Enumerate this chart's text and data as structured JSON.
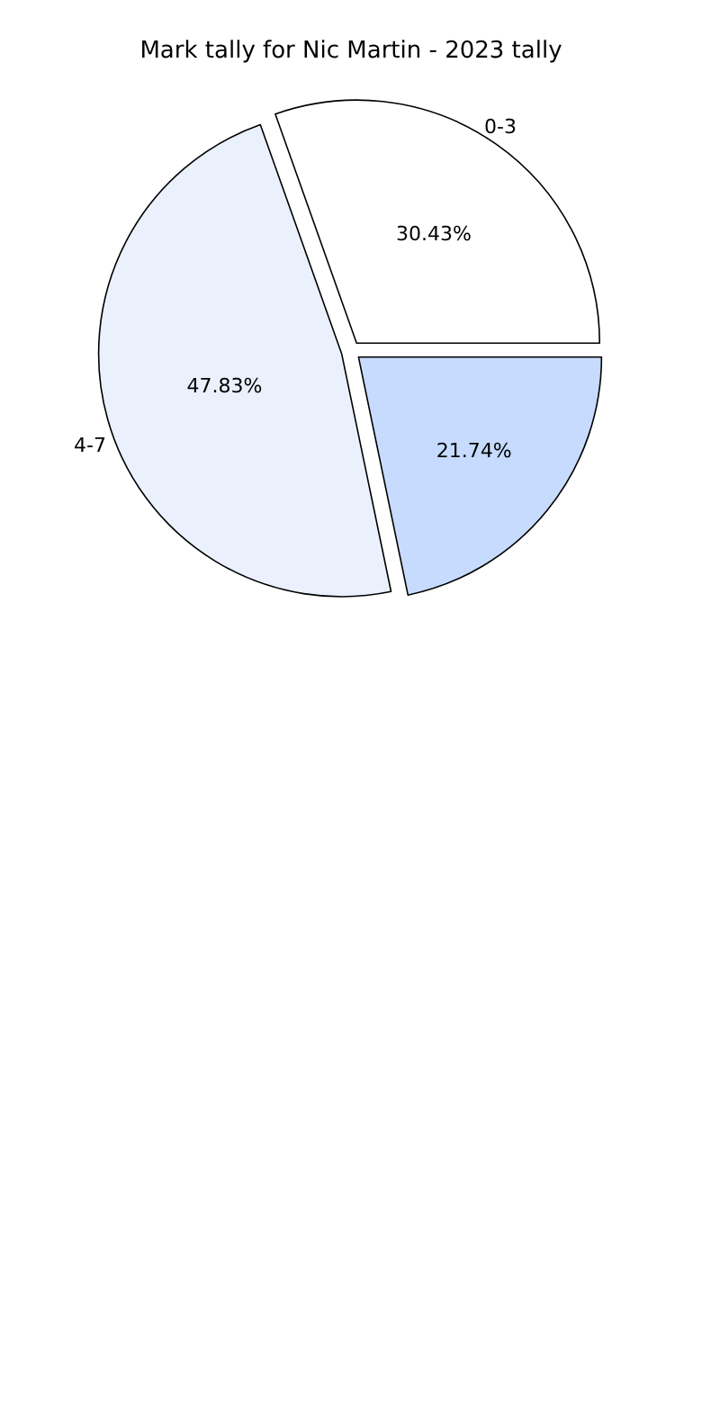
{
  "chart_data": {
    "type": "pie",
    "title": "Mark tally for Nic Martin - 2023 tally",
    "categories": [
      "0-3",
      null,
      "4-7"
    ],
    "values": [
      30.43,
      21.74,
      47.83
    ],
    "value_labels": [
      "30.43%",
      "21.74%",
      "47.83%"
    ],
    "colors": [
      "#ffffff",
      "#c6dbfd",
      "#eaf1fd"
    ],
    "legend": false
  }
}
